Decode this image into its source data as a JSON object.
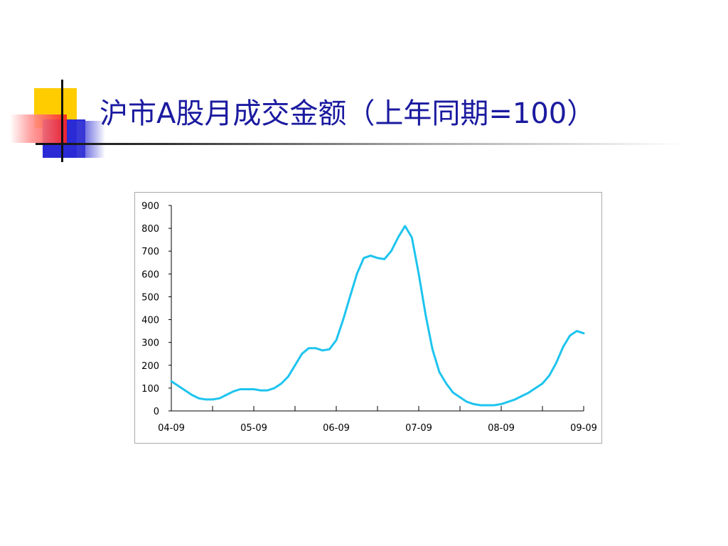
{
  "slide": {
    "title": "沪市A股月成交金额（上年同期=100）"
  },
  "chart_data": {
    "type": "line",
    "title": "",
    "xlabel": "",
    "ylabel": "",
    "ylim": [
      0,
      900
    ],
    "yticks": [
      0,
      100,
      200,
      300,
      400,
      500,
      600,
      700,
      800,
      900
    ],
    "xtick_labels": [
      "04-09",
      "05-09",
      "06-09",
      "07-09",
      "08-09",
      "09-09"
    ],
    "grid": false,
    "line_color": "#1ec4ee",
    "series": [
      {
        "x": [
          "04-09",
          "04-10",
          "04-11",
          "04-12",
          "05-01",
          "05-02",
          "05-03",
          "05-04",
          "05-05",
          "05-06",
          "05-07",
          "05-08",
          "05-09",
          "05-10",
          "05-11",
          "05-12",
          "06-01",
          "06-02",
          "06-03",
          "06-04",
          "06-05",
          "06-06",
          "06-07",
          "06-08",
          "06-09",
          "06-10",
          "06-11",
          "06-12",
          "07-01",
          "07-02",
          "07-03",
          "07-04",
          "07-05",
          "07-06",
          "07-07",
          "07-08",
          "07-09",
          "07-10",
          "07-11",
          "07-12",
          "08-01",
          "08-02",
          "08-03",
          "08-04",
          "08-05",
          "08-06",
          "08-07",
          "08-08",
          "08-09",
          "08-10",
          "08-11",
          "08-12",
          "09-01",
          "09-02",
          "09-03",
          "09-04",
          "09-05",
          "09-06",
          "09-07",
          "09-08",
          "09-09"
        ],
        "values": [
          130,
          110,
          90,
          70,
          55,
          50,
          50,
          55,
          70,
          85,
          95,
          95,
          95,
          90,
          90,
          100,
          120,
          150,
          200,
          250,
          275,
          275,
          265,
          270,
          310,
          400,
          500,
          600,
          670,
          680,
          670,
          665,
          700,
          760,
          810,
          760,
          600,
          420,
          270,
          170,
          120,
          80,
          60,
          40,
          30,
          25,
          25,
          25,
          30,
          40,
          50,
          65,
          80,
          100,
          120,
          155,
          210,
          280,
          330,
          350,
          340
        ]
      }
    ]
  }
}
